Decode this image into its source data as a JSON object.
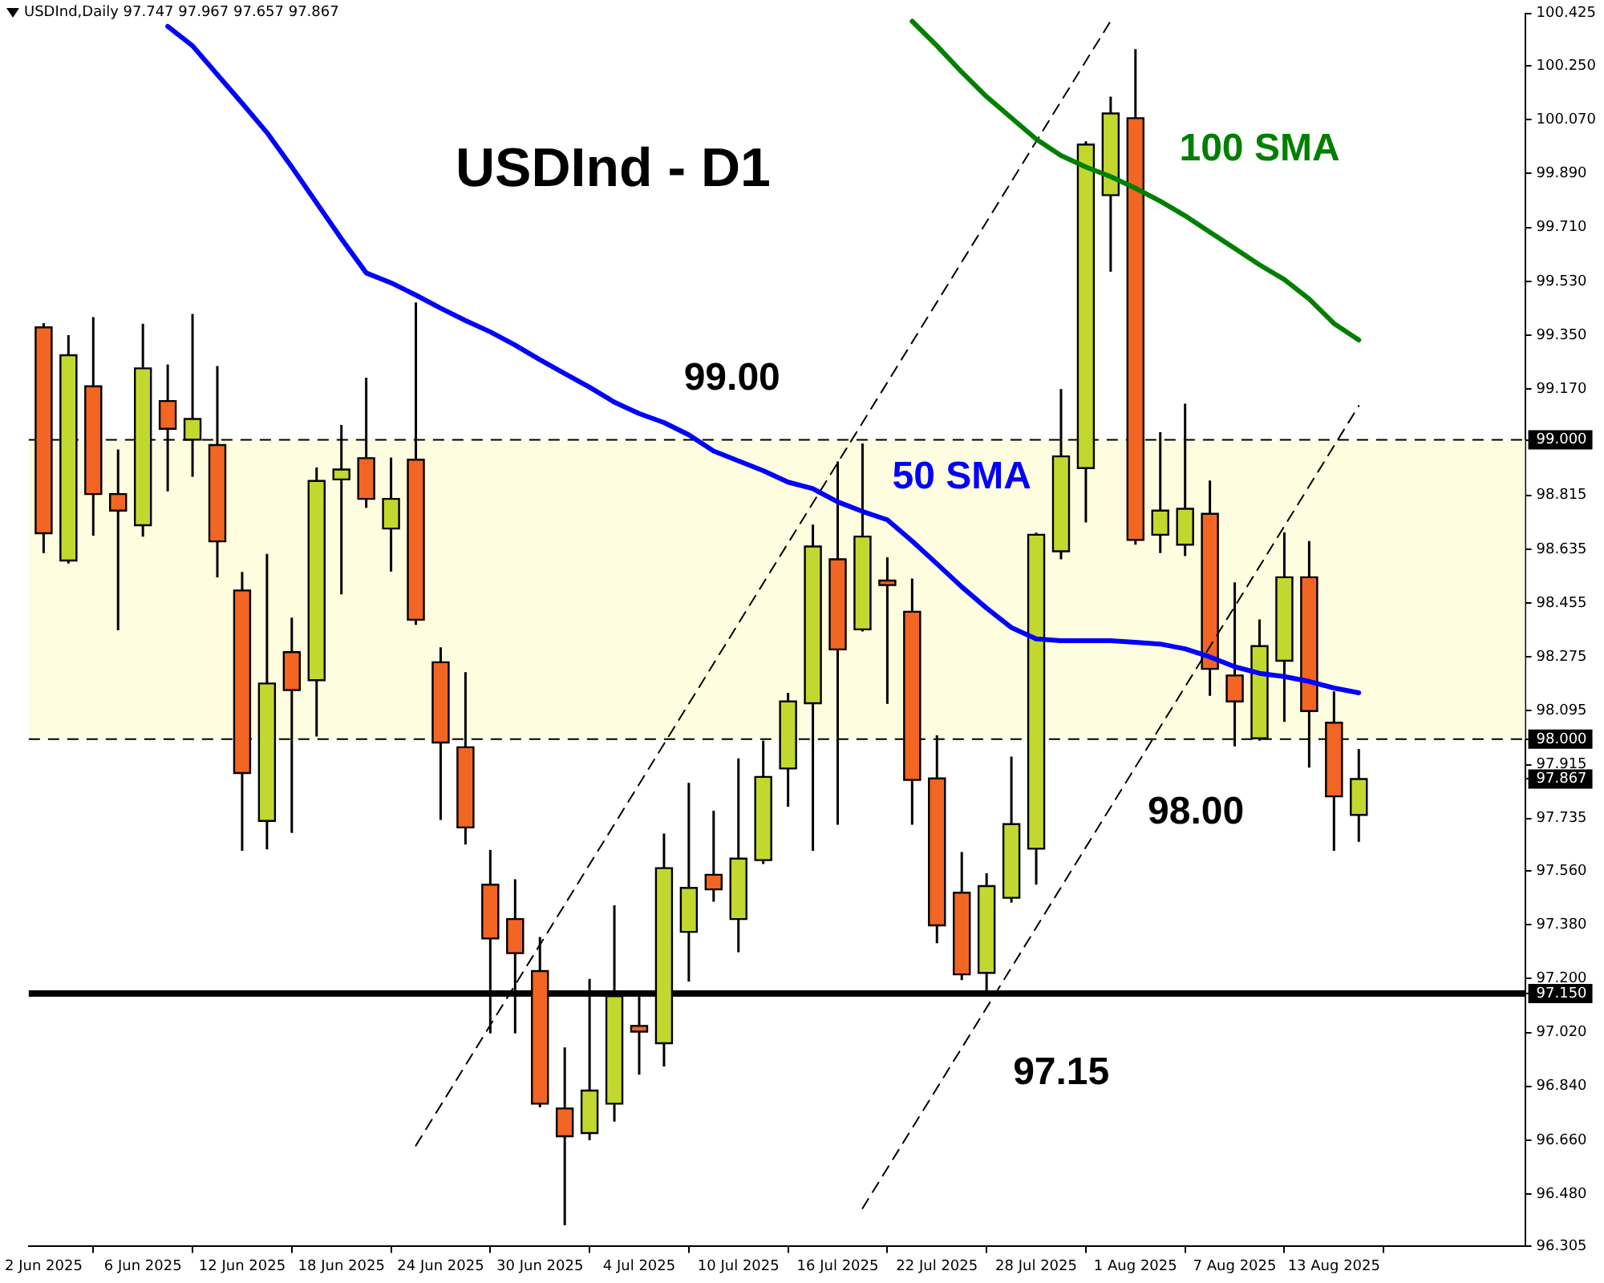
{
  "chart_data": {
    "type": "candlestick",
    "title": "USDInd - D1",
    "subtitle": "USDInd,Daily 97.747 97.967 97.657 97.867",
    "categories": [
      "2 Jun 2025",
      null,
      null,
      null,
      "6 Jun 2025",
      null,
      null,
      null,
      "12 Jun 2025",
      null,
      null,
      null,
      "18 Jun 2025",
      null,
      null,
      null,
      "24 Jun 2025",
      null,
      null,
      null,
      "30 Jun 2025",
      null,
      null,
      null,
      "4 Jul 2025",
      null,
      null,
      null,
      "10 Jul 2025",
      null,
      null,
      null,
      "16 Jul 2025",
      null,
      null,
      null,
      "22 Jul 2025",
      null,
      null,
      null,
      "28 Jul 2025",
      null,
      null,
      null,
      "1 Aug 2025",
      null,
      null,
      null,
      "7 Aug 2025",
      null,
      null,
      null,
      "13 Aug 2025",
      null
    ],
    "ohlc": [
      [
        99.376,
        99.39,
        98.622,
        98.688
      ],
      [
        98.597,
        99.35,
        98.587,
        99.283
      ],
      [
        99.179,
        99.41,
        98.68,
        98.819
      ],
      [
        98.819,
        98.968,
        98.364,
        98.764
      ],
      [
        98.715,
        99.388,
        98.677,
        99.239
      ],
      [
        99.13,
        99.252,
        98.828,
        99.037
      ],
      [
        99.001,
        99.421,
        98.877,
        99.07
      ],
      [
        98.983,
        99.247,
        98.541,
        98.661
      ],
      [
        98.497,
        98.559,
        97.627,
        97.887
      ],
      [
        97.727,
        98.619,
        97.632,
        98.186
      ],
      [
        98.291,
        98.406,
        97.687,
        98.164
      ],
      [
        98.197,
        98.908,
        98.009,
        98.863
      ],
      [
        98.868,
        99.05,
        98.484,
        98.901
      ],
      [
        98.939,
        99.208,
        98.773,
        98.803
      ],
      [
        98.704,
        98.941,
        98.56,
        98.803
      ],
      [
        98.934,
        99.459,
        98.382,
        98.399
      ],
      [
        98.257,
        98.307,
        97.73,
        97.989
      ],
      [
        97.973,
        98.224,
        97.648,
        97.705
      ],
      [
        97.514,
        97.63,
        97.017,
        97.334
      ],
      [
        97.399,
        97.532,
        97.017,
        97.285
      ],
      [
        97.225,
        97.339,
        96.77,
        96.782
      ],
      [
        96.766,
        96.97,
        96.376,
        96.673
      ],
      [
        96.684,
        97.199,
        96.66,
        96.826
      ],
      [
        96.782,
        97.445,
        96.722,
        97.141
      ],
      [
        97.042,
        97.139,
        96.879,
        97.023
      ],
      [
        96.984,
        97.685,
        96.906,
        97.569
      ],
      [
        97.356,
        97.854,
        97.19,
        97.503
      ],
      [
        97.547,
        97.761,
        97.457,
        97.498
      ],
      [
        97.399,
        97.936,
        97.288,
        97.601
      ],
      [
        97.596,
        97.995,
        97.583,
        97.874
      ],
      [
        97.902,
        98.155,
        97.774,
        98.126
      ],
      [
        98.12,
        98.717,
        97.627,
        98.644
      ],
      [
        98.601,
        98.928,
        97.714,
        98.3
      ],
      [
        98.367,
        98.988,
        98.36,
        98.677
      ],
      [
        98.53,
        98.608,
        98.118,
        98.515
      ],
      [
        98.426,
        98.537,
        97.714,
        97.864
      ],
      [
        97.869,
        98.013,
        97.318,
        97.378
      ],
      [
        97.487,
        97.623,
        97.195,
        97.214
      ],
      [
        97.219,
        97.552,
        97.15,
        97.509
      ],
      [
        97.47,
        97.942,
        97.454,
        97.716
      ],
      [
        97.634,
        98.69,
        97.514,
        98.683
      ],
      [
        98.628,
        99.17,
        98.601,
        98.945
      ],
      [
        98.906,
        99.998,
        98.724,
        99.987
      ],
      [
        99.818,
        100.147,
        99.562,
        100.091
      ],
      [
        100.075,
        100.306,
        98.65,
        98.666
      ],
      [
        98.683,
        99.026,
        98.622,
        98.764
      ],
      [
        98.65,
        99.121,
        98.612,
        98.77
      ],
      [
        98.753,
        98.864,
        98.145,
        98.235
      ],
      [
        98.213,
        98.524,
        97.976,
        98.126
      ],
      [
        98.003,
        98.4,
        97.995,
        98.311
      ],
      [
        98.262,
        98.691,
        98.058,
        98.541
      ],
      [
        98.541,
        98.662,
        97.905,
        98.094
      ],
      [
        98.055,
        98.16,
        97.627,
        97.809
      ],
      [
        97.747,
        97.967,
        97.657,
        97.867
      ]
    ],
    "colors": [
      "#f26522",
      "#c3d82e",
      "#f26522",
      "#f26522",
      "#c3d82e",
      "#f26522",
      "#c3d82e",
      "#f26522",
      "#f26522",
      "#c3d82e",
      "#f26522",
      "#c3d82e",
      "#c3d82e",
      "#f26522",
      "#c3d82e",
      "#f26522",
      "#f26522",
      "#f26522",
      "#f26522",
      "#f26522",
      "#f26522",
      "#f26522",
      "#c3d82e",
      "#c3d82e",
      "#f26522",
      "#c3d82e",
      "#c3d82e",
      "#f26522",
      "#c3d82e",
      "#c3d82e",
      "#c3d82e",
      "#c3d82e",
      "#f26522",
      "#c3d82e",
      "#f26522",
      "#f26522",
      "#f26522",
      "#f26522",
      "#c3d82e",
      "#c3d82e",
      "#c3d82e",
      "#c3d82e",
      "#c3d82e",
      "#c3d82e",
      "#f26522",
      "#c3d82e",
      "#c3d82e",
      "#f26522",
      "#f26522",
      "#c3d82e",
      "#c3d82e",
      "#f26522",
      "#f26522",
      "#c3d82e"
    ],
    "series": [
      {
        "type": "line",
        "name": "50 SMA",
        "color": "#0000ff",
        "values": [
          null,
          null,
          null,
          null,
          null,
          100.382,
          100.317,
          100.221,
          100.125,
          100.027,
          99.912,
          99.792,
          99.672,
          99.558,
          99.525,
          99.484,
          99.44,
          99.399,
          99.361,
          99.317,
          99.268,
          99.222,
          99.176,
          99.126,
          99.088,
          99.058,
          99.017,
          98.963,
          98.93,
          98.897,
          98.859,
          98.837,
          98.793,
          98.761,
          98.733,
          98.662,
          98.586,
          98.509,
          98.438,
          98.373,
          98.335,
          98.329,
          98.329,
          98.329,
          98.324,
          98.318,
          98.302,
          98.275,
          98.242,
          98.22,
          98.209,
          98.193,
          98.171,
          98.155
        ]
      },
      {
        "type": "line",
        "name": "100 SMA",
        "color": "#007f00",
        "values": [
          null,
          null,
          null,
          null,
          null,
          null,
          null,
          null,
          null,
          null,
          null,
          null,
          null,
          null,
          null,
          null,
          null,
          null,
          null,
          null,
          null,
          null,
          null,
          null,
          null,
          null,
          null,
          null,
          null,
          null,
          null,
          null,
          null,
          null,
          null,
          100.399,
          100.317,
          100.229,
          100.147,
          100.076,
          100.005,
          99.95,
          99.912,
          99.88,
          99.841,
          99.798,
          99.749,
          99.694,
          99.64,
          99.585,
          99.536,
          99.471,
          99.389,
          99.334
        ]
      },
      {
        "type": "line",
        "color": "#000000",
        "line_style": "dashed",
        "values": [
          null,
          null,
          null,
          null,
          null,
          null,
          null,
          null,
          null,
          null,
          null,
          null,
          null,
          null,
          null,
          96.642,
          null,
          null,
          null,
          null,
          null,
          null,
          null,
          null,
          null,
          null,
          null,
          null,
          null,
          null,
          null,
          null,
          null,
          null,
          null,
          null,
          null,
          null,
          null,
          null,
          null,
          null,
          null,
          100.4,
          null,
          null,
          null,
          null,
          null,
          null,
          null,
          null,
          null,
          null
        ]
      },
      {
        "type": "line",
        "color": "#000000",
        "line_style": "dashed",
        "values": [
          null,
          null,
          null,
          null,
          null,
          null,
          null,
          null,
          null,
          null,
          null,
          null,
          null,
          null,
          null,
          null,
          null,
          null,
          null,
          null,
          null,
          null,
          null,
          null,
          null,
          null,
          null,
          null,
          null,
          null,
          null,
          null,
          null,
          96.432,
          null,
          null,
          null,
          null,
          null,
          null,
          null,
          null,
          null,
          null,
          null,
          null,
          null,
          null,
          null,
          null,
          null,
          null,
          null,
          99.114
        ]
      }
    ],
    "ylim": [
      96.305,
      100.425
    ],
    "yticks": [
      100.425,
      {
        "value": 100.25,
        "label": "100.250"
      },
      {
        "value": 100.07,
        "label": "100.070"
      },
      {
        "value": 99.89,
        "label": "99.890"
      },
      {
        "value": 99.71,
        "label": "99.710"
      },
      {
        "value": 99.53,
        "label": "99.530"
      },
      {
        "value": 99.35,
        "label": "99.350"
      },
      {
        "value": 99.17,
        "label": "99.170"
      },
      {
        "value": 99,
        "label": "99.000"
      },
      98.815,
      98.635,
      98.455,
      98.275,
      98.095,
      {
        "value": 98,
        "label": "98.000"
      },
      97.915,
      97.867,
      97.735,
      {
        "value": 97.56,
        "label": "97.560"
      },
      {
        "value": 97.38,
        "label": "97.380"
      },
      {
        "value": 97.2,
        "label": "97.200"
      },
      {
        "value": 97.15,
        "label": "97.150"
      },
      {
        "value": 97.02,
        "label": "97.020"
      },
      {
        "value": 96.84,
        "label": "96.840"
      },
      {
        "value": 96.66,
        "label": "96.660"
      },
      {
        "value": 96.48,
        "label": "96.480"
      },
      96.305
    ],
    "ref_lines": [
      {
        "axis": "y",
        "value": 99,
        "label": "99.00",
        "color": "#000000",
        "line_style": "dashed"
      },
      {
        "axis": "y",
        "value": 98,
        "label": "98.00",
        "color": "#000000",
        "line_style": "dashed"
      },
      {
        "axis": "y",
        "value": 97.15,
        "label": "97.15",
        "color": "#000000",
        "line_style": "solid"
      }
    ],
    "bands": [
      {
        "axis": "y",
        "from": 98,
        "to": 99,
        "color": "#fffde0"
      }
    ]
  }
}
